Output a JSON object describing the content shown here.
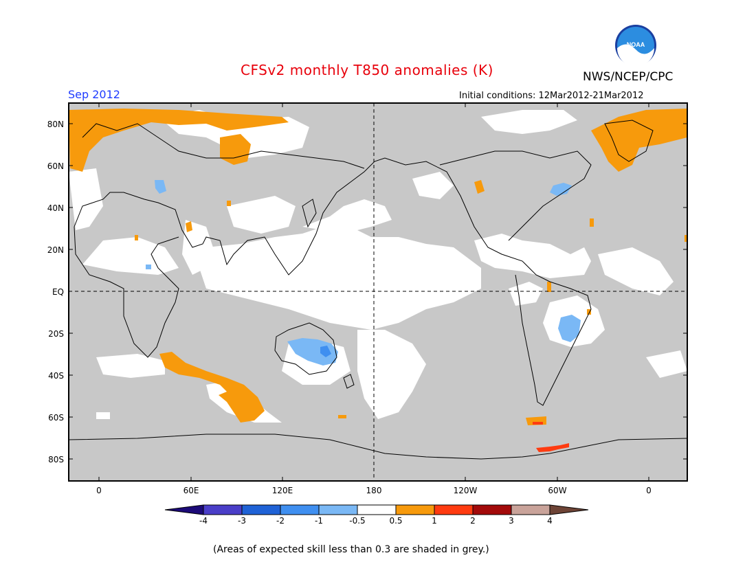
{
  "title": "CFSv2 monthly T850 anomalies (K)",
  "agency": "NWS/NCEP/CPC",
  "logo_text": "NOAA",
  "period": "Sep 2012",
  "initial_conditions": "Initial conditions: 12Mar2012-21Mar2012",
  "footnote": "(Areas of expected skill less than 0.3 are shaded in grey.)",
  "lat_labels": [
    "80N",
    "60N",
    "40N",
    "20N",
    "EQ",
    "20S",
    "40S",
    "60S",
    "80S"
  ],
  "lon_labels": [
    "0",
    "60E",
    "120E",
    "180",
    "120W",
    "60W",
    "0"
  ],
  "colorbar": {
    "labels": [
      "-4",
      "-3",
      "-2",
      "-1",
      "-0.5",
      "0.5",
      "1",
      "2",
      "3",
      "4"
    ],
    "colors": [
      "#1c0a78",
      "#4a3ec8",
      "#1f62d6",
      "#3f8ff0",
      "#7ab8f5",
      "#ffffff",
      "#f79a0c",
      "#ff3b10",
      "#a30a0a",
      "#c9a39a",
      "#6e4436"
    ]
  },
  "colors": {
    "skill_grey": "#c8c8c8",
    "warm_light": "#f79a0c",
    "warm_mid": "#ff3b10",
    "cool_light": "#7ab8f5",
    "cool_mid": "#3f8ff0"
  }
}
